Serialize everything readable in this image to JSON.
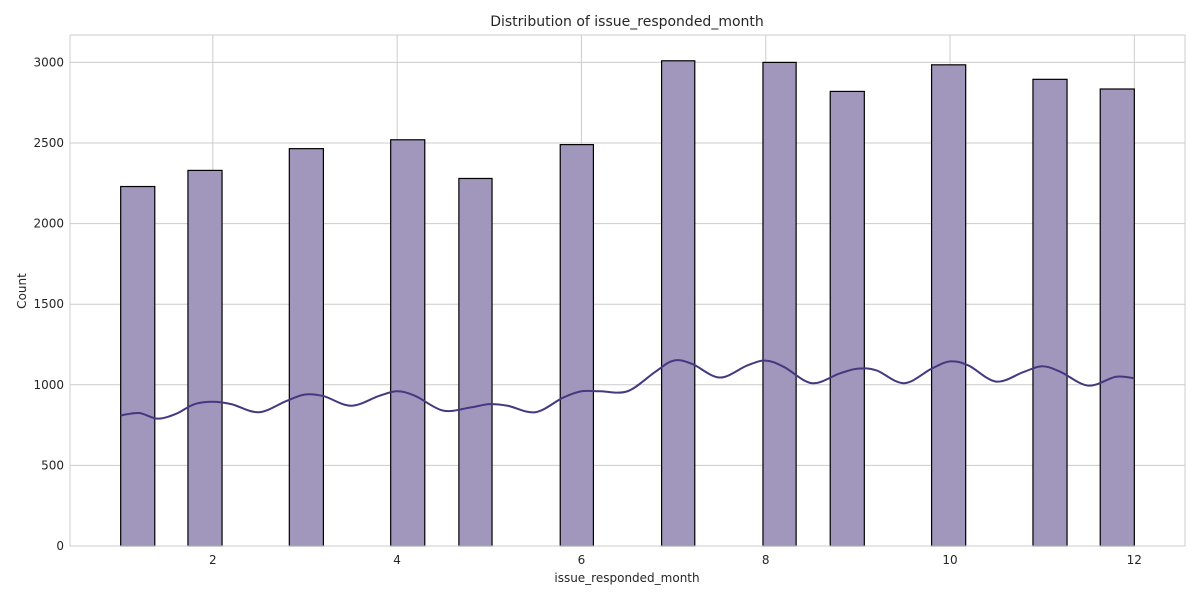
{
  "chart_data": {
    "type": "bar",
    "title": "Distribution of issue_responded_month",
    "xlabel": "issue_responded_month",
    "ylabel": "Count",
    "xlim": [
      0.45,
      12.55
    ],
    "ylim": [
      0,
      3170
    ],
    "xticks": [
      2,
      4,
      6,
      8,
      10,
      12
    ],
    "yticks": [
      0,
      500,
      1000,
      1500,
      2000,
      2500,
      3000
    ],
    "grid": true,
    "bar_color": "#a197bd",
    "kde_color": "#45387f",
    "bins": [
      {
        "x0": 1.0,
        "x1": 1.37,
        "count": 2230
      },
      {
        "x0": 1.73,
        "x1": 2.1,
        "count": 2330
      },
      {
        "x0": 2.83,
        "x1": 3.2,
        "count": 2465
      },
      {
        "x0": 3.93,
        "x1": 4.3,
        "count": 2520
      },
      {
        "x0": 4.67,
        "x1": 5.03,
        "count": 2280
      },
      {
        "x0": 5.77,
        "x1": 6.13,
        "count": 2490
      },
      {
        "x0": 6.87,
        "x1": 7.23,
        "count": 3010
      },
      {
        "x0": 7.97,
        "x1": 8.33,
        "count": 3000
      },
      {
        "x0": 8.7,
        "x1": 9.07,
        "count": 2820
      },
      {
        "x0": 9.8,
        "x1": 10.17,
        "count": 2985
      },
      {
        "x0": 10.9,
        "x1": 11.27,
        "count": 2895
      },
      {
        "x0": 11.63,
        "x1": 12.0,
        "count": 2835
      }
    ],
    "kde": {
      "x": [
        1.0,
        1.2,
        1.4,
        1.6,
        1.8,
        2.0,
        2.2,
        2.5,
        2.8,
        3.0,
        3.2,
        3.5,
        3.8,
        4.0,
        4.2,
        4.5,
        4.8,
        5.0,
        5.2,
        5.5,
        5.8,
        6.0,
        6.2,
        6.5,
        6.8,
        7.0,
        7.2,
        7.5,
        7.8,
        8.0,
        8.2,
        8.5,
        8.8,
        9.0,
        9.2,
        9.5,
        9.8,
        10.0,
        10.2,
        10.5,
        10.8,
        11.0,
        11.2,
        11.5,
        11.8,
        12.0
      ],
      "y": [
        810,
        825,
        790,
        820,
        880,
        895,
        880,
        830,
        900,
        940,
        930,
        870,
        930,
        960,
        930,
        840,
        860,
        880,
        870,
        830,
        920,
        960,
        960,
        960,
        1080,
        1150,
        1130,
        1045,
        1120,
        1150,
        1110,
        1010,
        1070,
        1100,
        1090,
        1010,
        1100,
        1145,
        1120,
        1020,
        1080,
        1115,
        1080,
        995,
        1050,
        1040
      ]
    }
  }
}
